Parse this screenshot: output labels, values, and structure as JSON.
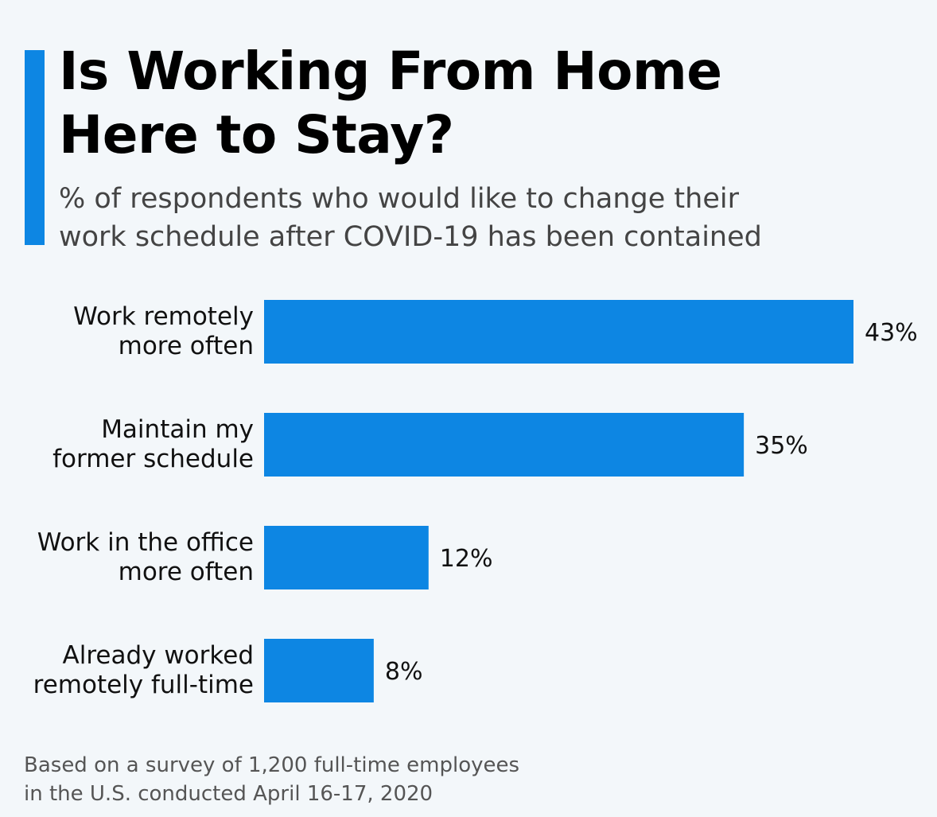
{
  "title_lines": [
    "Is Working From Home",
    "Here to Stay?"
  ],
  "subtitle_lines": [
    "% of respondents who would like to change their",
    "work schedule after COVID-19 has been contained"
  ],
  "colors": {
    "bar": "#0d86e3",
    "accent": "#0d86e3"
  },
  "chart_data": {
    "type": "bar",
    "orientation": "horizontal",
    "categories": [
      [
        "Work remotely",
        "more often"
      ],
      [
        "Maintain my",
        "former schedule"
      ],
      [
        "Work in the office",
        "more often"
      ],
      [
        "Already worked",
        "remotely full-time"
      ]
    ],
    "values": [
      43,
      35,
      12,
      8
    ],
    "value_labels": [
      "43%",
      "35%",
      "12%",
      "8%"
    ],
    "unit": "%",
    "xlim": [
      0,
      43
    ],
    "grid": false,
    "legend": "none"
  },
  "source_lines": [
    "Based on a survey of 1,200 full-time employees",
    "in the U.S. conducted April 16-17, 2020"
  ]
}
